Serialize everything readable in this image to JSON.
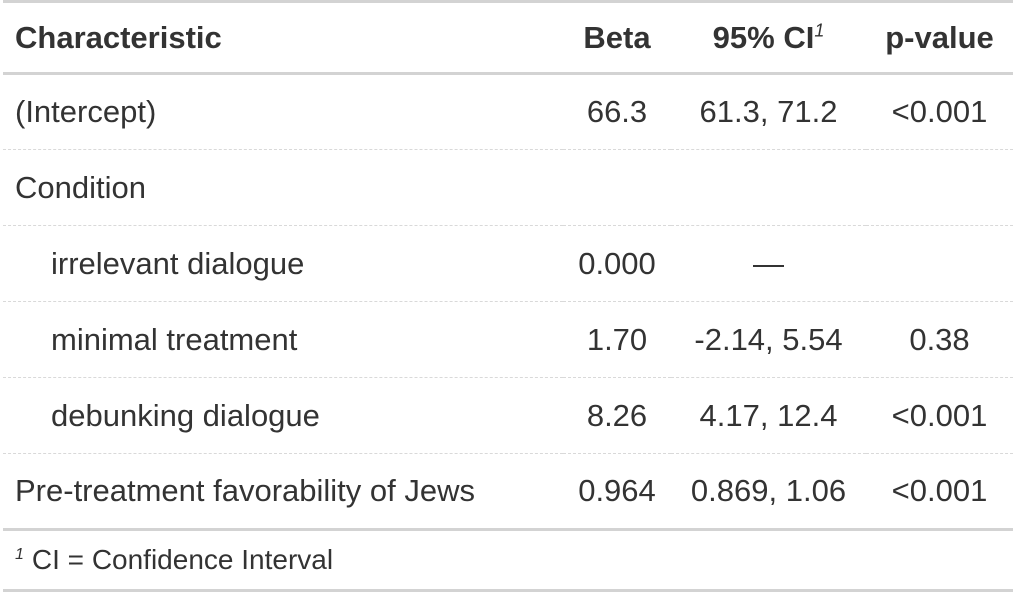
{
  "table": {
    "headers": {
      "characteristic": "Characteristic",
      "beta": "Beta",
      "ci": "95% CI",
      "ci_footnote_mark": "1",
      "pvalue": "p-value"
    },
    "rows": [
      {
        "label": "(Intercept)",
        "beta": "66.3",
        "ci": "61.3, 71.2",
        "p": "<0.001"
      },
      {
        "label": "Condition",
        "beta": "",
        "ci": "",
        "p": ""
      },
      {
        "label": "irrelevant dialogue",
        "beta": "0.000",
        "ci": "—",
        "p": ""
      },
      {
        "label": "minimal treatment",
        "beta": "1.70",
        "ci": "-2.14, 5.54",
        "p": "0.38"
      },
      {
        "label": "debunking dialogue",
        "beta": "8.26",
        "ci": "4.17, 12.4",
        "p": "<0.001"
      },
      {
        "label": "Pre-treatment favorability of Jews",
        "beta": "0.964",
        "ci": "0.869, 1.06",
        "p": "<0.001"
      }
    ],
    "footnote": {
      "mark": "1",
      "text": "CI = Confidence Interval"
    }
  },
  "colors": {
    "text": "#333333",
    "rule": "#d3d3d3",
    "dashed_rule": "#d9d9d9"
  }
}
